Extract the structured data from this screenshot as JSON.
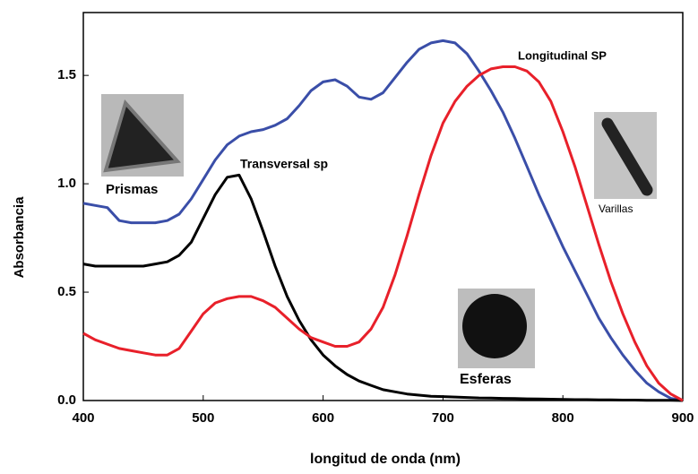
{
  "chart_data": {
    "type": "line",
    "xlabel": "longitud de onda (nm)",
    "ylabel": "Absorbancia",
    "x": [
      400,
      410,
      420,
      430,
      440,
      450,
      460,
      470,
      480,
      490,
      500,
      510,
      520,
      530,
      540,
      550,
      560,
      570,
      580,
      590,
      600,
      610,
      620,
      630,
      640,
      650,
      660,
      670,
      680,
      690,
      700,
      710,
      720,
      730,
      740,
      750,
      760,
      770,
      780,
      790,
      800,
      810,
      820,
      830,
      840,
      850,
      860,
      870,
      880,
      890,
      900
    ],
    "series": [
      {
        "color": "#3a4ea8",
        "values": [
          0.91,
          0.9,
          0.89,
          0.83,
          0.82,
          0.82,
          0.82,
          0.83,
          0.86,
          0.93,
          1.02,
          1.11,
          1.18,
          1.22,
          1.24,
          1.25,
          1.27,
          1.3,
          1.36,
          1.43,
          1.47,
          1.48,
          1.45,
          1.4,
          1.39,
          1.42,
          1.49,
          1.56,
          1.62,
          1.65,
          1.66,
          1.65,
          1.6,
          1.52,
          1.43,
          1.33,
          1.21,
          1.08,
          0.95,
          0.83,
          0.71,
          0.6,
          0.49,
          0.38,
          0.29,
          0.21,
          0.14,
          0.08,
          0.04,
          0.01,
          0
        ]
      },
      {
        "color": "#000000",
        "values": [
          0.63,
          0.62,
          0.62,
          0.62,
          0.62,
          0.62,
          0.63,
          0.64,
          0.67,
          0.73,
          0.84,
          0.95,
          1.03,
          1.04,
          0.93,
          0.78,
          0.62,
          0.48,
          0.37,
          0.28,
          0.21,
          0.16,
          0.12,
          0.09,
          0.07,
          0.05,
          0.04,
          0.03,
          0.025,
          0.02,
          0.018,
          0.016,
          0.014,
          0.012,
          0.011,
          0.01,
          0.009,
          0.008,
          0.007,
          0.006,
          0.005,
          0.004,
          0.004,
          0.003,
          0.003,
          0.002,
          0.002,
          0.001,
          0.001,
          0.001,
          0
        ]
      },
      {
        "color": "#e8202a",
        "values": [
          0.31,
          0.28,
          0.26,
          0.24,
          0.23,
          0.22,
          0.21,
          0.21,
          0.24,
          0.32,
          0.4,
          0.45,
          0.47,
          0.48,
          0.48,
          0.46,
          0.43,
          0.38,
          0.33,
          0.29,
          0.27,
          0.25,
          0.25,
          0.27,
          0.33,
          0.43,
          0.58,
          0.76,
          0.95,
          1.13,
          1.28,
          1.38,
          1.45,
          1.5,
          1.53,
          1.54,
          1.54,
          1.52,
          1.47,
          1.38,
          1.24,
          1.08,
          0.9,
          0.72,
          0.55,
          0.4,
          0.27,
          0.16,
          0.08,
          0.03,
          0
        ]
      }
    ],
    "annotations": [
      {
        "text": "Transversal sp",
        "color": "#000000"
      },
      {
        "text": "Longitudinal SP",
        "color": "#000000"
      },
      {
        "text": "Prismas",
        "color": "#4a5aa8"
      },
      {
        "text": "Varillas",
        "color": "#e8202a"
      },
      {
        "text": "Esferas",
        "color": "#000000"
      }
    ],
    "xlim": [
      400,
      900
    ],
    "ylim": [
      0,
      1.79
    ],
    "xticks": [
      400,
      500,
      600,
      700,
      800,
      900
    ],
    "yticks": [
      {
        "value": 0,
        "label": "0.0"
      },
      0.5,
      {
        "value": 1,
        "label": "1.0"
      },
      1.5
    ]
  }
}
